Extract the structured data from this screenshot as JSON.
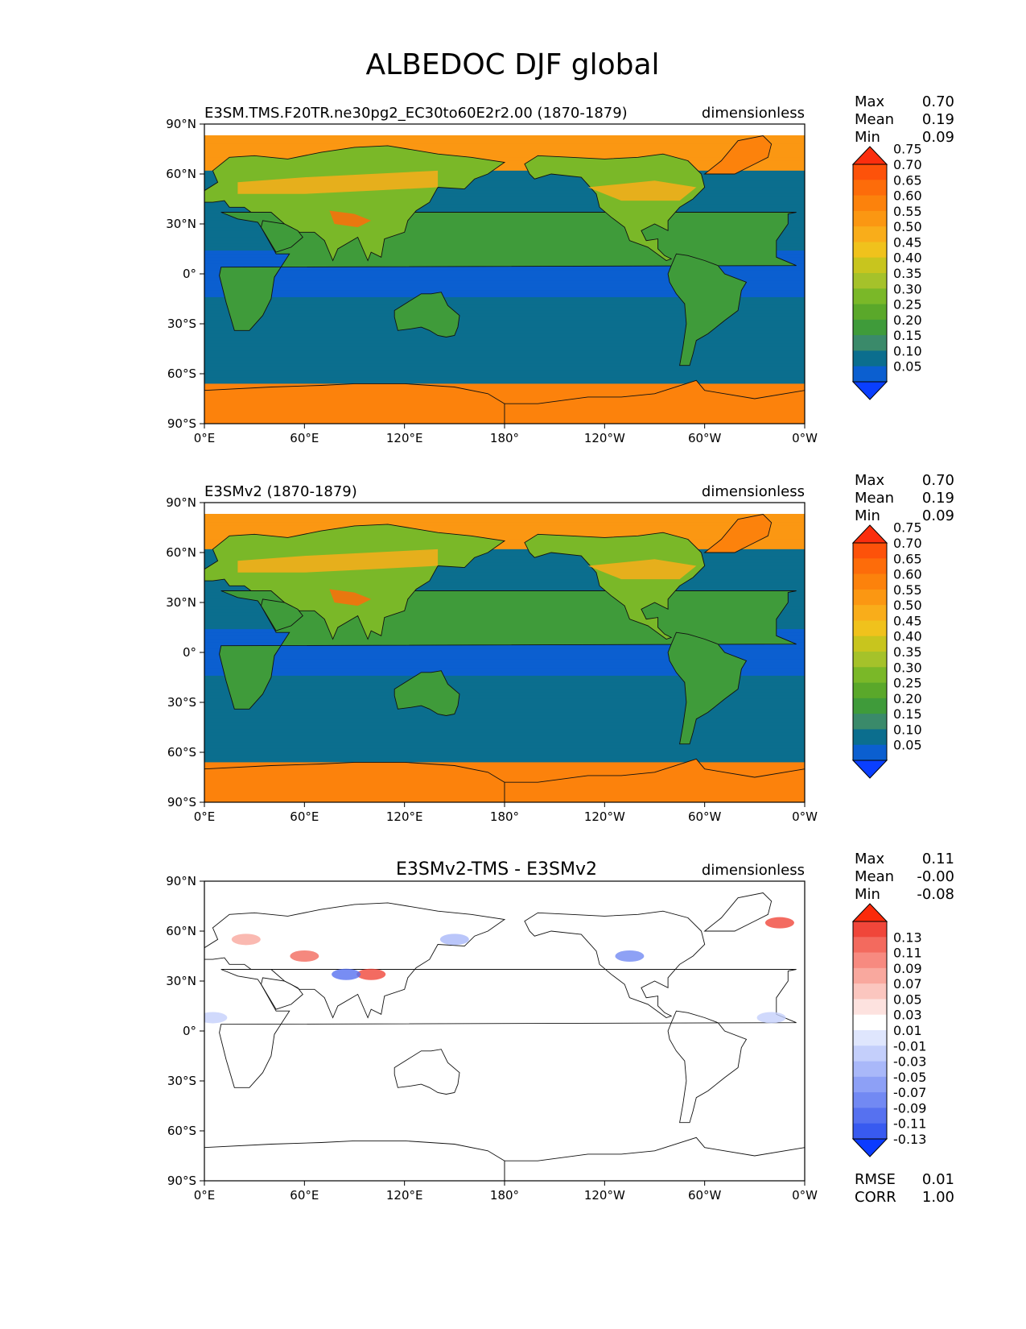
{
  "figure_title": "ALBEDOC DJF global",
  "x_tick_labels": [
    "0°E",
    "60°E",
    "120°E",
    "180°",
    "120°W",
    "60°W",
    "0°W"
  ],
  "y_tick_labels": [
    "90°N",
    "60°N",
    "30°N",
    "0°",
    "30°S",
    "60°S",
    "90°S"
  ],
  "chart_data": [
    {
      "type": "heatmap",
      "panel": "test",
      "title_left": "E3SM.TMS.F20TR.ne30pg2_EC30to60E2r2.00 (1870-1879)",
      "title_center": "",
      "title_right": "dimensionless",
      "stats": [
        {
          "label": "Max",
          "value": "0.70"
        },
        {
          "label": "Mean",
          "value": "0.19"
        },
        {
          "label": "Min",
          "value": "0.09"
        }
      ],
      "xlim": [
        0,
        360
      ],
      "ylim": [
        -90,
        90
      ],
      "colorbar_levels": [
        "0.05",
        "0.10",
        "0.15",
        "0.20",
        "0.25",
        "0.30",
        "0.35",
        "0.40",
        "0.45",
        "0.50",
        "0.55",
        "0.60",
        "0.65",
        "0.70",
        "0.75"
      ],
      "colorbar_colors": [
        "#0a3fff",
        "#0b5fd0",
        "#0b6e8e",
        "#3a8a6a",
        "#3f9b3a",
        "#5aa82a",
        "#7ab828",
        "#a5c22a",
        "#c8c51e",
        "#f0c21c",
        "#f9ad1a",
        "#fb9712",
        "#fc820c",
        "#fd6c0a",
        "#fd520a",
        "#fb2e0e"
      ]
    },
    {
      "type": "heatmap",
      "panel": "reference",
      "title_left": "E3SMv2 (1870-1879)",
      "title_center": "",
      "title_right": "dimensionless",
      "stats": [
        {
          "label": "Max",
          "value": "0.70"
        },
        {
          "label": "Mean",
          "value": "0.19"
        },
        {
          "label": "Min",
          "value": "0.09"
        }
      ],
      "xlim": [
        0,
        360
      ],
      "ylim": [
        -90,
        90
      ],
      "colorbar_levels": [
        "0.05",
        "0.10",
        "0.15",
        "0.20",
        "0.25",
        "0.30",
        "0.35",
        "0.40",
        "0.45",
        "0.50",
        "0.55",
        "0.60",
        "0.65",
        "0.70",
        "0.75"
      ],
      "colorbar_colors": [
        "#0a3fff",
        "#0b5fd0",
        "#0b6e8e",
        "#3a8a6a",
        "#3f9b3a",
        "#5aa82a",
        "#7ab828",
        "#a5c22a",
        "#c8c51e",
        "#f0c21c",
        "#f9ad1a",
        "#fb9712",
        "#fc820c",
        "#fd6c0a",
        "#fd520a",
        "#fb2e0e"
      ]
    },
    {
      "type": "heatmap",
      "panel": "difference",
      "title_left": "",
      "title_center": "E3SMv2-TMS - E3SMv2",
      "title_right": "dimensionless",
      "stats": [
        {
          "label": "Max",
          "value": "0.11"
        },
        {
          "label": "Mean",
          "value": "-0.00"
        },
        {
          "label": "Min",
          "value": "-0.08"
        }
      ],
      "extra_stats": [
        {
          "label": "RMSE",
          "value": "0.01"
        },
        {
          "label": "CORR",
          "value": "1.00"
        }
      ],
      "xlim": [
        0,
        360
      ],
      "ylim": [
        -90,
        90
      ],
      "colorbar_levels": [
        "0.13",
        "0.11",
        "0.09",
        "0.07",
        "0.05",
        "0.03",
        "0.01",
        "-0.01",
        "-0.03",
        "-0.05",
        "-0.07",
        "-0.09",
        "-0.11",
        "-0.13"
      ],
      "colorbar_colors": [
        "#fb2a0a",
        "#f0463a",
        "#f36a5e",
        "#f78a80",
        "#f9a89e",
        "#fbc6bf",
        "#fde2df",
        "#ffffff",
        "#dfe6fd",
        "#c4cffb",
        "#a9b8f9",
        "#8da0f6",
        "#7289f3",
        "#5671f0",
        "#385af0",
        "#0b3bff"
      ]
    }
  ]
}
